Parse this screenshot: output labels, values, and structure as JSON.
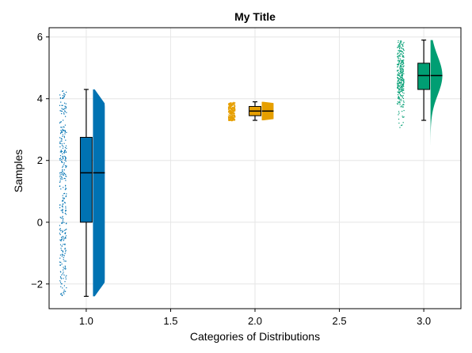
{
  "chart_data": {
    "type": "raincloud",
    "title": "My Title",
    "xlabel": "Categories of Distributions",
    "ylabel": "Samples",
    "xlim": [
      0.78,
      3.22
    ],
    "ylim": [
      -2.8,
      6.3
    ],
    "xticks": [
      1.0,
      1.5,
      2.0,
      2.5,
      3.0
    ],
    "xtick_labels": [
      "1.0",
      "1.5",
      "2.0",
      "2.5",
      "3.0"
    ],
    "yticks": [
      -2,
      0,
      2,
      4,
      6
    ],
    "ytick_labels": [
      "−2",
      "0",
      "2",
      "4",
      "6"
    ],
    "grid": true,
    "series": [
      {
        "category": 1.0,
        "color": "#0072B2",
        "min": -2.4,
        "q1": 0.0,
        "median": 1.6,
        "q3": 2.75,
        "max": 4.3,
        "points_range": [
          -2.4,
          4.3
        ],
        "distribution": "uniform"
      },
      {
        "category": 2.0,
        "color": "#E69F00",
        "min": 3.3,
        "q1": 3.45,
        "median": 3.6,
        "q3": 3.75,
        "max": 3.9,
        "points_range": [
          3.3,
          3.9
        ],
        "distribution": "uniform"
      },
      {
        "category": 3.0,
        "color": "#009E73",
        "min": 3.3,
        "q1": 4.3,
        "median": 4.75,
        "q3": 5.15,
        "max": 5.9,
        "points_range": [
          2.5,
          5.9
        ],
        "distribution": "normal"
      }
    ]
  }
}
